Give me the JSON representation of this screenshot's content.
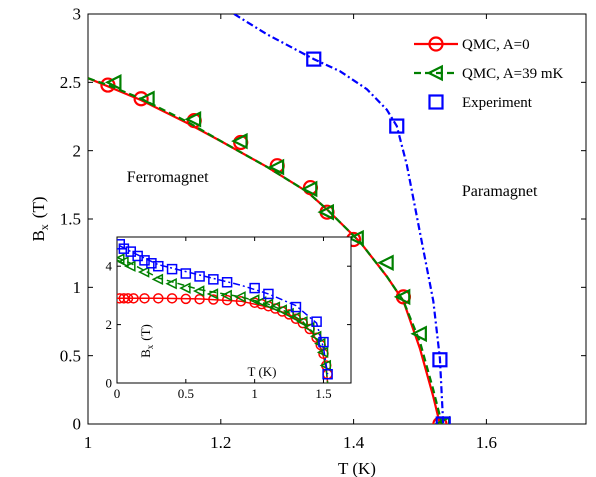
{
  "chart_data": [
    {
      "type": "line",
      "xlabel": "T (K)",
      "ylabel": "B",
      "ylabel_sub": "x",
      "ylabel_unit": "(T)",
      "xlim": [
        1.0,
        1.75
      ],
      "ylim": [
        0,
        3
      ],
      "xticks": [
        1,
        1.2,
        1.4,
        1.6
      ],
      "xtick_labels": [
        "1",
        "1.2",
        "1.4",
        "1.6"
      ],
      "yticks": [
        0,
        0.5,
        1,
        1.5,
        2,
        2.5,
        3
      ],
      "ytick_labels": [
        "0",
        "0.5",
        "1",
        "1.5",
        "2",
        "2.5",
        "3"
      ],
      "legend": "top-right",
      "annotations": [
        {
          "text": "Ferromagnet",
          "x": 1.12,
          "y": 1.77
        },
        {
          "text": "Paramagnet",
          "x": 1.62,
          "y": 1.67
        }
      ],
      "series": [
        {
          "name": "QMC, A=0",
          "color": "#ff0000",
          "marker": "circle",
          "line": "solid",
          "line_x": [
            1.0,
            1.03,
            1.08,
            1.15,
            1.2,
            1.27,
            1.33,
            1.36,
            1.41,
            1.45,
            1.475,
            1.5,
            1.52,
            1.53
          ],
          "line_y": [
            2.53,
            2.47,
            2.37,
            2.2,
            2.07,
            1.88,
            1.7,
            1.57,
            1.33,
            1.08,
            0.9,
            0.55,
            0.2,
            0.0
          ],
          "x": [
            1.03,
            1.08,
            1.16,
            1.23,
            1.285,
            1.335,
            1.36,
            1.4,
            1.475,
            1.53
          ],
          "y": [
            2.48,
            2.38,
            2.22,
            2.06,
            1.89,
            1.73,
            1.55,
            1.35,
            0.93,
            0.0
          ]
        },
        {
          "name": "QMC, A=39 mK",
          "color": "#008000",
          "marker": "triangle-left",
          "line": "dashed",
          "line_x": [
            1.0,
            1.03,
            1.08,
            1.15,
            1.2,
            1.27,
            1.33,
            1.36,
            1.41,
            1.45,
            1.475,
            1.5,
            1.52,
            1.533
          ],
          "line_y": [
            2.53,
            2.48,
            2.38,
            2.21,
            2.07,
            1.88,
            1.7,
            1.57,
            1.33,
            1.08,
            0.9,
            0.6,
            0.25,
            0.0
          ],
          "x": [
            1.04,
            1.09,
            1.16,
            1.23,
            1.285,
            1.335,
            1.36,
            1.405,
            1.45,
            1.475,
            1.5,
            1.535
          ],
          "y": [
            2.5,
            2.38,
            2.23,
            2.07,
            1.88,
            1.72,
            1.55,
            1.36,
            1.18,
            0.93,
            0.66,
            0.0
          ]
        },
        {
          "name": "Experiment",
          "color": "#0000ff",
          "marker": "square",
          "line": "dashdot",
          "line_x": [
            1.22,
            1.27,
            1.34,
            1.38,
            1.42,
            1.45,
            1.465,
            1.48,
            1.5,
            1.52,
            1.53,
            1.535
          ],
          "line_y": [
            3.0,
            2.85,
            2.67,
            2.58,
            2.45,
            2.3,
            2.18,
            1.9,
            1.4,
            0.9,
            0.48,
            0.0
          ],
          "x": [
            1.34,
            1.465,
            1.53,
            1.535
          ],
          "y": [
            2.67,
            2.18,
            0.47,
            0.0
          ]
        }
      ]
    },
    {
      "type": "line",
      "xlabel": "T (K)",
      "ylabel": "B",
      "ylabel_sub": "x",
      "ylabel_unit": "(T)",
      "xlim": [
        0,
        1.7
      ],
      "ylim": [
        0,
        5
      ],
      "xticks": [
        0,
        0.5,
        1,
        1.5
      ],
      "xtick_labels": [
        "0",
        "0.5",
        "1",
        "1.5"
      ],
      "yticks": [
        0,
        2,
        4
      ],
      "ytick_labels": [
        "0",
        "2",
        "4"
      ],
      "series": [
        {
          "name": "QMC, A=0",
          "color": "#ff0000",
          "marker": "circle",
          "line": "solid",
          "line_x": [
            0.0,
            0.1,
            0.3,
            0.6,
            0.9,
            1.1,
            1.25,
            1.35,
            1.42,
            1.47,
            1.5,
            1.52,
            1.53
          ],
          "line_y": [
            2.9,
            2.9,
            2.9,
            2.88,
            2.8,
            2.6,
            2.35,
            2.05,
            1.7,
            1.3,
            0.9,
            0.5,
            0.0
          ],
          "x": [
            0.02,
            0.05,
            0.08,
            0.12,
            0.2,
            0.3,
            0.4,
            0.5,
            0.6,
            0.7,
            0.8,
            0.9,
            1.0,
            1.05,
            1.1,
            1.15,
            1.2,
            1.25,
            1.3,
            1.35,
            1.4,
            1.45,
            1.48,
            1.5,
            1.52,
            1.53
          ],
          "y": [
            2.9,
            2.9,
            2.9,
            2.9,
            2.9,
            2.9,
            2.9,
            2.88,
            2.87,
            2.86,
            2.84,
            2.8,
            2.75,
            2.7,
            2.63,
            2.55,
            2.45,
            2.35,
            2.2,
            2.05,
            1.85,
            1.55,
            1.3,
            1.0,
            0.6,
            0.3
          ]
        },
        {
          "name": "QMC, A=39 mK",
          "color": "#008000",
          "marker": "triangle-left",
          "line": "dashed",
          "line_x": [
            0.0,
            0.1,
            0.3,
            0.6,
            0.9,
            1.1,
            1.25,
            1.35,
            1.42,
            1.47,
            1.5,
            1.52,
            1.53
          ],
          "line_y": [
            4.3,
            4.1,
            3.6,
            3.2,
            2.95,
            2.7,
            2.4,
            2.1,
            1.75,
            1.35,
            0.95,
            0.5,
            0.0
          ],
          "x": [
            0.02,
            0.05,
            0.1,
            0.2,
            0.3,
            0.4,
            0.5,
            0.6,
            0.7,
            0.8,
            0.9,
            1.0,
            1.05,
            1.1,
            1.15,
            1.2,
            1.25,
            1.3,
            1.35,
            1.4,
            1.45,
            1.48,
            1.5,
            1.52
          ],
          "y": [
            4.25,
            4.15,
            4.0,
            3.8,
            3.55,
            3.4,
            3.25,
            3.15,
            3.05,
            3.0,
            2.95,
            2.85,
            2.78,
            2.7,
            2.6,
            2.5,
            2.38,
            2.25,
            2.1,
            1.9,
            1.6,
            1.35,
            1.05,
            0.6
          ]
        },
        {
          "name": "Experiment",
          "color": "#0000ff",
          "marker": "square",
          "line": "dashdot",
          "line_x": [
            0.02,
            0.1,
            0.3,
            0.6,
            0.9,
            1.1,
            1.3,
            1.45,
            1.5,
            1.53
          ],
          "line_y": [
            4.7,
            4.5,
            4.05,
            3.7,
            3.35,
            3.05,
            2.65,
            2.05,
            1.2,
            0.3
          ],
          "x": [
            0.02,
            0.05,
            0.1,
            0.15,
            0.2,
            0.25,
            0.3,
            0.4,
            0.5,
            0.6,
            0.7,
            0.8,
            1.0,
            1.1,
            1.3,
            1.45,
            1.5,
            1.53
          ],
          "y": [
            4.75,
            4.6,
            4.5,
            4.35,
            4.2,
            4.1,
            4.0,
            3.9,
            3.75,
            3.65,
            3.55,
            3.45,
            3.25,
            3.05,
            2.6,
            2.1,
            1.4,
            0.3
          ]
        }
      ]
    }
  ]
}
